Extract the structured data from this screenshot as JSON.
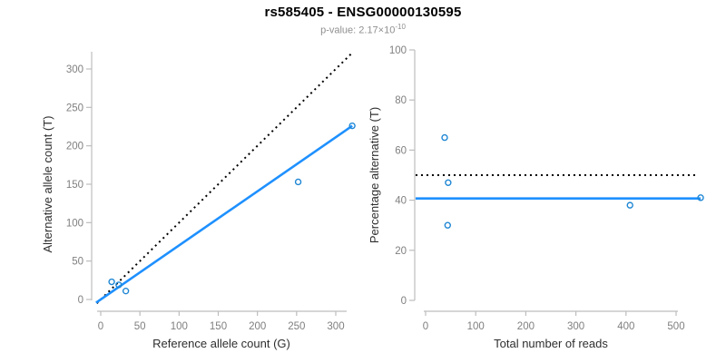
{
  "header": {
    "title": "rs585405 - ENSG00000130595",
    "subtitle_prefix": "p-value: 2.17×10",
    "subtitle_exponent": "-10"
  },
  "colors": {
    "title": "#000000",
    "subtitle": "#8f8f8f",
    "axis_line": "#bdbdbd",
    "tick_label": "#7f7f7f",
    "axis_title": "#2e2e2e",
    "fit_line": "#1E90FF",
    "point_stroke": "#1f87d4",
    "reference_line": "#000000"
  },
  "chart_data": [
    {
      "type": "scatter",
      "xlabel": "Reference allele count (G)",
      "ylabel": "Alternative allele count (T)",
      "xlim": [
        0,
        300
      ],
      "ylim": [
        0,
        300
      ],
      "xticks": [
        0,
        50,
        100,
        150,
        200,
        250,
        300
      ],
      "yticks": [
        0,
        50,
        100,
        150,
        200,
        250,
        300
      ],
      "grid": false,
      "legend": false,
      "points": [
        [
          14,
          23
        ],
        [
          23,
          19
        ],
        [
          32,
          11
        ],
        [
          252,
          153
        ],
        [
          321,
          226
        ]
      ],
      "lines": [
        {
          "name": "expected-identity-line",
          "style": "dotted",
          "color_key": "reference_line",
          "slope": 1,
          "intercept": 0,
          "x_range": [
            -5,
            321
          ]
        },
        {
          "name": "fitted-allelic-ratio-line",
          "style": "solid",
          "color_key": "fit_line",
          "slope": 0.704,
          "intercept": 0,
          "x_range": [
            -6,
            321
          ]
        }
      ]
    },
    {
      "type": "scatter",
      "xlabel": "Total number of reads",
      "ylabel": "Percentage alternative (T)",
      "xlim": [
        0,
        500
      ],
      "ylim": [
        0,
        100
      ],
      "xticks": [
        0,
        100,
        200,
        300,
        400,
        500
      ],
      "yticks": [
        0,
        20,
        40,
        60,
        80,
        100
      ],
      "grid": false,
      "legend": false,
      "points": [
        [
          38,
          65
        ],
        [
          45,
          47
        ],
        [
          44,
          30
        ],
        [
          408,
          38
        ],
        [
          549,
          41
        ]
      ],
      "lines": [
        {
          "name": "expected-50-percent-line",
          "style": "dotted",
          "color_key": "reference_line",
          "slope": 0,
          "intercept": 50,
          "x_range": [
            -20,
            542
          ]
        },
        {
          "name": "fitted-percentage-line",
          "style": "solid",
          "color_key": "fit_line",
          "slope": 0,
          "intercept": 40.7,
          "x_range": [
            -20,
            549
          ]
        }
      ]
    }
  ]
}
